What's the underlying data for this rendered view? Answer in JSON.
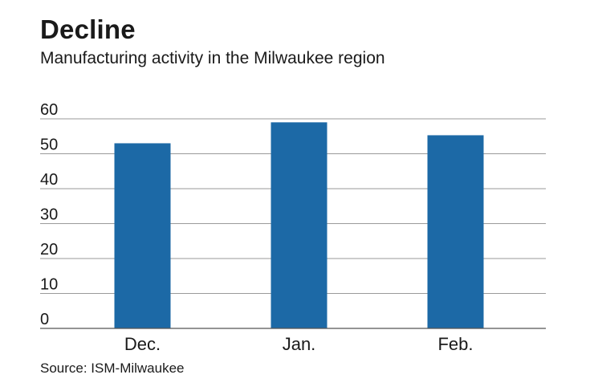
{
  "title": "Decline",
  "subtitle": "Manufacturing activity in the Milwaukee region",
  "source": "Source: ISM-Milwaukee",
  "colors": {
    "bar": "#1c69a6",
    "grid": "#9a9a9a",
    "axis": "#555555"
  },
  "chart_data": {
    "type": "bar",
    "title": "Decline",
    "subtitle": "Manufacturing activity in the Milwaukee region",
    "xlabel": "",
    "ylabel": "",
    "categories": [
      "Dec.",
      "Jan.",
      "Feb."
    ],
    "values": [
      53,
      59,
      55.3
    ],
    "ylim": [
      0,
      60
    ],
    "yticks": [
      0,
      10,
      20,
      30,
      40,
      50,
      60
    ],
    "grid": true,
    "legend": "none"
  }
}
